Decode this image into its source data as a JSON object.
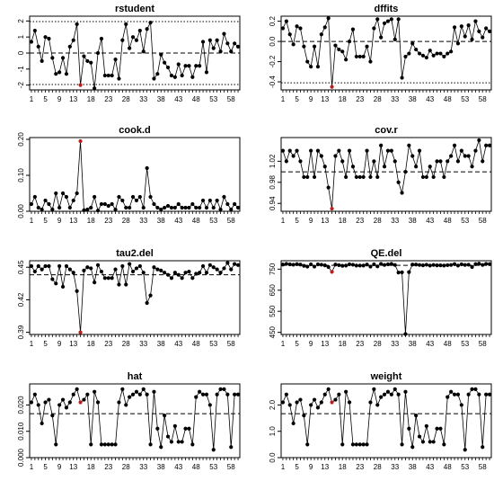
{
  "chart_data": [
    {
      "type": "line",
      "title": "rstudent",
      "ylim": [
        -2.3,
        2.3
      ],
      "yticks": [
        -2,
        -1,
        0,
        1,
        2
      ],
      "ytick_labels": [
        "-2",
        "-1",
        "0",
        "1",
        "2"
      ],
      "hlines": [
        {
          "y": 0,
          "style": "dashed"
        },
        {
          "y": 1.96,
          "style": "dotted"
        },
        {
          "y": -1.96,
          "style": "dotted"
        }
      ],
      "highlight_index": 15,
      "y": [
        0.7,
        1.4,
        0.4,
        -0.5,
        1.0,
        0.9,
        -0.3,
        -1.3,
        -1.2,
        -0.3,
        -1.3,
        0.4,
        0.8,
        1.8,
        -2.0,
        -0.2,
        -0.5,
        -0.6,
        -2.2,
        0.0,
        0.9,
        -1.4,
        -1.4,
        -1.4,
        -0.4,
        -1.6,
        0.8,
        1.8,
        0.3,
        1.0,
        0.8,
        1.4,
        0.1,
        1.5,
        1.9,
        -1.6,
        -1.3,
        -0.1,
        -0.6,
        -0.9,
        -1.4,
        -1.5,
        -0.7,
        -1.4,
        -0.8,
        -0.8,
        -1.5,
        -0.8,
        -0.8,
        0.7,
        -1.2,
        0.8,
        0.3,
        0.8,
        0.1,
        1.2,
        0.6,
        0.1,
        0.6,
        0.4
      ]
    },
    {
      "type": "line",
      "title": "dffits",
      "ylim": [
        -0.48,
        0.25
      ],
      "yticks": [
        -0.4,
        -0.2,
        0,
        0.2
      ],
      "ytick_labels": [
        "-0.4",
        "-0.2",
        "0.0",
        "0.2"
      ],
      "hlines": [
        {
          "y": 0,
          "style": "dashed"
        },
        {
          "y": -0.41,
          "style": "dotted"
        }
      ],
      "highlight_index": 15,
      "y": [
        0.13,
        0.2,
        0.07,
        -0.03,
        0.15,
        0.13,
        -0.05,
        -0.2,
        -0.25,
        -0.05,
        -0.25,
        0.07,
        0.14,
        0.23,
        -0.45,
        -0.04,
        -0.08,
        -0.1,
        -0.18,
        0.0,
        0.12,
        -0.15,
        -0.15,
        -0.15,
        -0.05,
        -0.2,
        0.13,
        0.22,
        0.04,
        0.18,
        0.2,
        0.22,
        0.02,
        0.22,
        -0.36,
        -0.15,
        -0.12,
        -0.02,
        -0.08,
        -0.12,
        -0.14,
        -0.16,
        -0.09,
        -0.14,
        -0.12,
        -0.12,
        -0.15,
        -0.12,
        -0.1,
        0.14,
        -0.02,
        0.15,
        0.05,
        0.16,
        0.02,
        0.2,
        0.1,
        0.04,
        0.13,
        0.1
      ]
    },
    {
      "type": "line",
      "title": "cook.d",
      "ylim": [
        0,
        0.205
      ],
      "yticks": [
        0,
        0.1,
        0.2
      ],
      "ytick_labels": [
        "0.00",
        "0.10",
        "0.20"
      ],
      "hlines": [],
      "highlight_index": 15,
      "y": [
        0.02,
        0.04,
        0.01,
        0.005,
        0.03,
        0.02,
        0.005,
        0.05,
        0.01,
        0.05,
        0.04,
        0.01,
        0.03,
        0.05,
        0.195,
        0.003,
        0.005,
        0.01,
        0.04,
        0.002,
        0.02,
        0.02,
        0.015,
        0.02,
        0.005,
        0.04,
        0.03,
        0.01,
        0.01,
        0.04,
        0.03,
        0.04,
        0.01,
        0.12,
        0.04,
        0.02,
        0.01,
        0.005,
        0.01,
        0.015,
        0.01,
        0.01,
        0.02,
        0.01,
        0.01,
        0.01,
        0.02,
        0.01,
        0.01,
        0.03,
        0.01,
        0.03,
        0.01,
        0.03,
        0.005,
        0.04,
        0.02,
        0.005,
        0.02,
        0.01
      ]
    },
    {
      "type": "line",
      "title": "cov.r",
      "ylim": [
        0.925,
        1.065
      ],
      "yticks": [
        0.94,
        0.98,
        1.02
      ],
      "ytick_labels": [
        "0.94",
        "0.98",
        "1.02"
      ],
      "hlines": [
        {
          "y": 1.0,
          "style": "dashed"
        }
      ],
      "highlight_index": 15,
      "y": [
        1.04,
        1.02,
        1.04,
        1.03,
        1.04,
        1.02,
        0.99,
        0.99,
        1.04,
        0.99,
        1.04,
        1.03,
        1.01,
        0.97,
        0.93,
        1.03,
        1.04,
        1.02,
        0.99,
        1.04,
        1.01,
        0.99,
        0.99,
        0.99,
        1.04,
        0.99,
        1.02,
        0.99,
        1.05,
        1.01,
        1.04,
        1.04,
        1.02,
        0.98,
        0.96,
        1.0,
        1.05,
        1.03,
        1.01,
        1.04,
        0.99,
        0.99,
        1.01,
        0.99,
        1.02,
        1.02,
        0.99,
        1.02,
        1.03,
        1.05,
        1.02,
        1.04,
        1.03,
        1.03,
        1.01,
        1.04,
        1.06,
        1.02,
        1.05,
        1.05
      ]
    },
    {
      "type": "line",
      "title": "tau2.del",
      "ylim": [
        0.388,
        0.456
      ],
      "yticks": [
        0.39,
        0.42,
        0.45
      ],
      "ytick_labels": [
        "0.39",
        "0.42",
        "0.45"
      ],
      "hlines": [
        {
          "y": 0.443,
          "style": "dashed"
        }
      ],
      "highlight_index": 15,
      "y": [
        0.451,
        0.446,
        0.451,
        0.448,
        0.451,
        0.451,
        0.439,
        0.435,
        0.451,
        0.432,
        0.451,
        0.448,
        0.445,
        0.428,
        0.39,
        0.447,
        0.45,
        0.449,
        0.436,
        0.452,
        0.446,
        0.44,
        0.44,
        0.44,
        0.448,
        0.434,
        0.451,
        0.434,
        0.453,
        0.446,
        0.449,
        0.451,
        0.445,
        0.417,
        0.424,
        0.45,
        0.448,
        0.447,
        0.445,
        0.443,
        0.44,
        0.445,
        0.443,
        0.44,
        0.445,
        0.446,
        0.44,
        0.444,
        0.445,
        0.451,
        0.445,
        0.452,
        0.45,
        0.448,
        0.445,
        0.449,
        0.454,
        0.448,
        0.453,
        0.452
      ]
    },
    {
      "type": "line",
      "title": "QE.del",
      "ylim": [
        440,
        790
      ],
      "yticks": [
        450,
        550,
        650,
        750
      ],
      "ytick_labels": [
        "450",
        "550",
        "650",
        "750"
      ],
      "hlines": [
        {
          "y": 768,
          "style": "dashed"
        }
      ],
      "highlight_index": 15,
      "y": [
        772,
        775,
        773,
        771,
        774,
        772,
        766,
        762,
        773,
        762,
        773,
        771,
        768,
        760,
        737,
        772,
        769,
        766,
        767,
        773,
        771,
        767,
        767,
        767,
        772,
        762,
        773,
        763,
        775,
        770,
        773,
        775,
        770,
        734,
        735,
        442,
        736,
        772,
        772,
        770,
        768,
        771,
        767,
        770,
        768,
        768,
        767,
        769,
        770,
        774,
        767,
        773,
        770,
        771,
        760,
        774,
        776,
        770,
        775,
        774
      ]
    },
    {
      "type": "line",
      "title": "hat",
      "ylim": [
        0,
        0.028
      ],
      "yticks": [
        0,
        0.01,
        0.02
      ],
      "ytick_labels": [
        "0.000",
        "0.010",
        "0.020"
      ],
      "hlines": [
        {
          "y": 0.0167,
          "style": "dashed"
        }
      ],
      "highlight_index": 15,
      "y": [
        0.021,
        0.024,
        0.02,
        0.013,
        0.021,
        0.022,
        0.016,
        0.005,
        0.02,
        0.022,
        0.019,
        0.021,
        0.024,
        0.026,
        0.021,
        0.022,
        0.024,
        0.005,
        0.025,
        0.021,
        0.005,
        0.005,
        0.005,
        0.005,
        0.005,
        0.021,
        0.026,
        0.02,
        0.023,
        0.024,
        0.025,
        0.024,
        0.026,
        0.024,
        0.005,
        0.025,
        0.011,
        0.004,
        0.016,
        0.008,
        0.006,
        0.012,
        0.006,
        0.006,
        0.011,
        0.011,
        0.005,
        0.023,
        0.025,
        0.024,
        0.024,
        0.02,
        0.003,
        0.024,
        0.026,
        0.026,
        0.024,
        0.004,
        0.024,
        0.024
      ]
    },
    {
      "type": "line",
      "title": "weight",
      "ylim": [
        0,
        2.8
      ],
      "yticks": [
        0,
        1,
        2
      ],
      "ytick_labels": [
        "0.0",
        "1.0",
        "2.0"
      ],
      "hlines": [
        {
          "y": 1.67,
          "style": "dashed"
        }
      ],
      "highlight_index": 15,
      "y": [
        2.1,
        2.4,
        2.0,
        1.3,
        2.1,
        2.2,
        1.6,
        0.5,
        2.0,
        2.2,
        1.9,
        2.1,
        2.4,
        2.6,
        2.1,
        2.2,
        2.4,
        0.5,
        2.5,
        2.1,
        0.5,
        0.5,
        0.5,
        0.5,
        0.5,
        2.1,
        2.6,
        2.0,
        2.3,
        2.4,
        2.5,
        2.4,
        2.6,
        2.4,
        0.5,
        2.5,
        1.1,
        0.4,
        1.6,
        0.8,
        0.6,
        1.2,
        0.6,
        0.6,
        1.1,
        1.1,
        0.5,
        2.3,
        2.5,
        2.4,
        2.4,
        2.0,
        0.3,
        2.4,
        2.6,
        2.6,
        2.4,
        0.4,
        2.4,
        2.4
      ]
    }
  ],
  "x_tick_labels": [
    "1",
    "5",
    "9",
    "13",
    "18",
    "23",
    "28",
    "33",
    "38",
    "43",
    "48",
    "53",
    "58"
  ],
  "colors": {
    "point": "#000000",
    "highlight": "#b22222",
    "line": "#000000",
    "background": "#ffffff"
  }
}
